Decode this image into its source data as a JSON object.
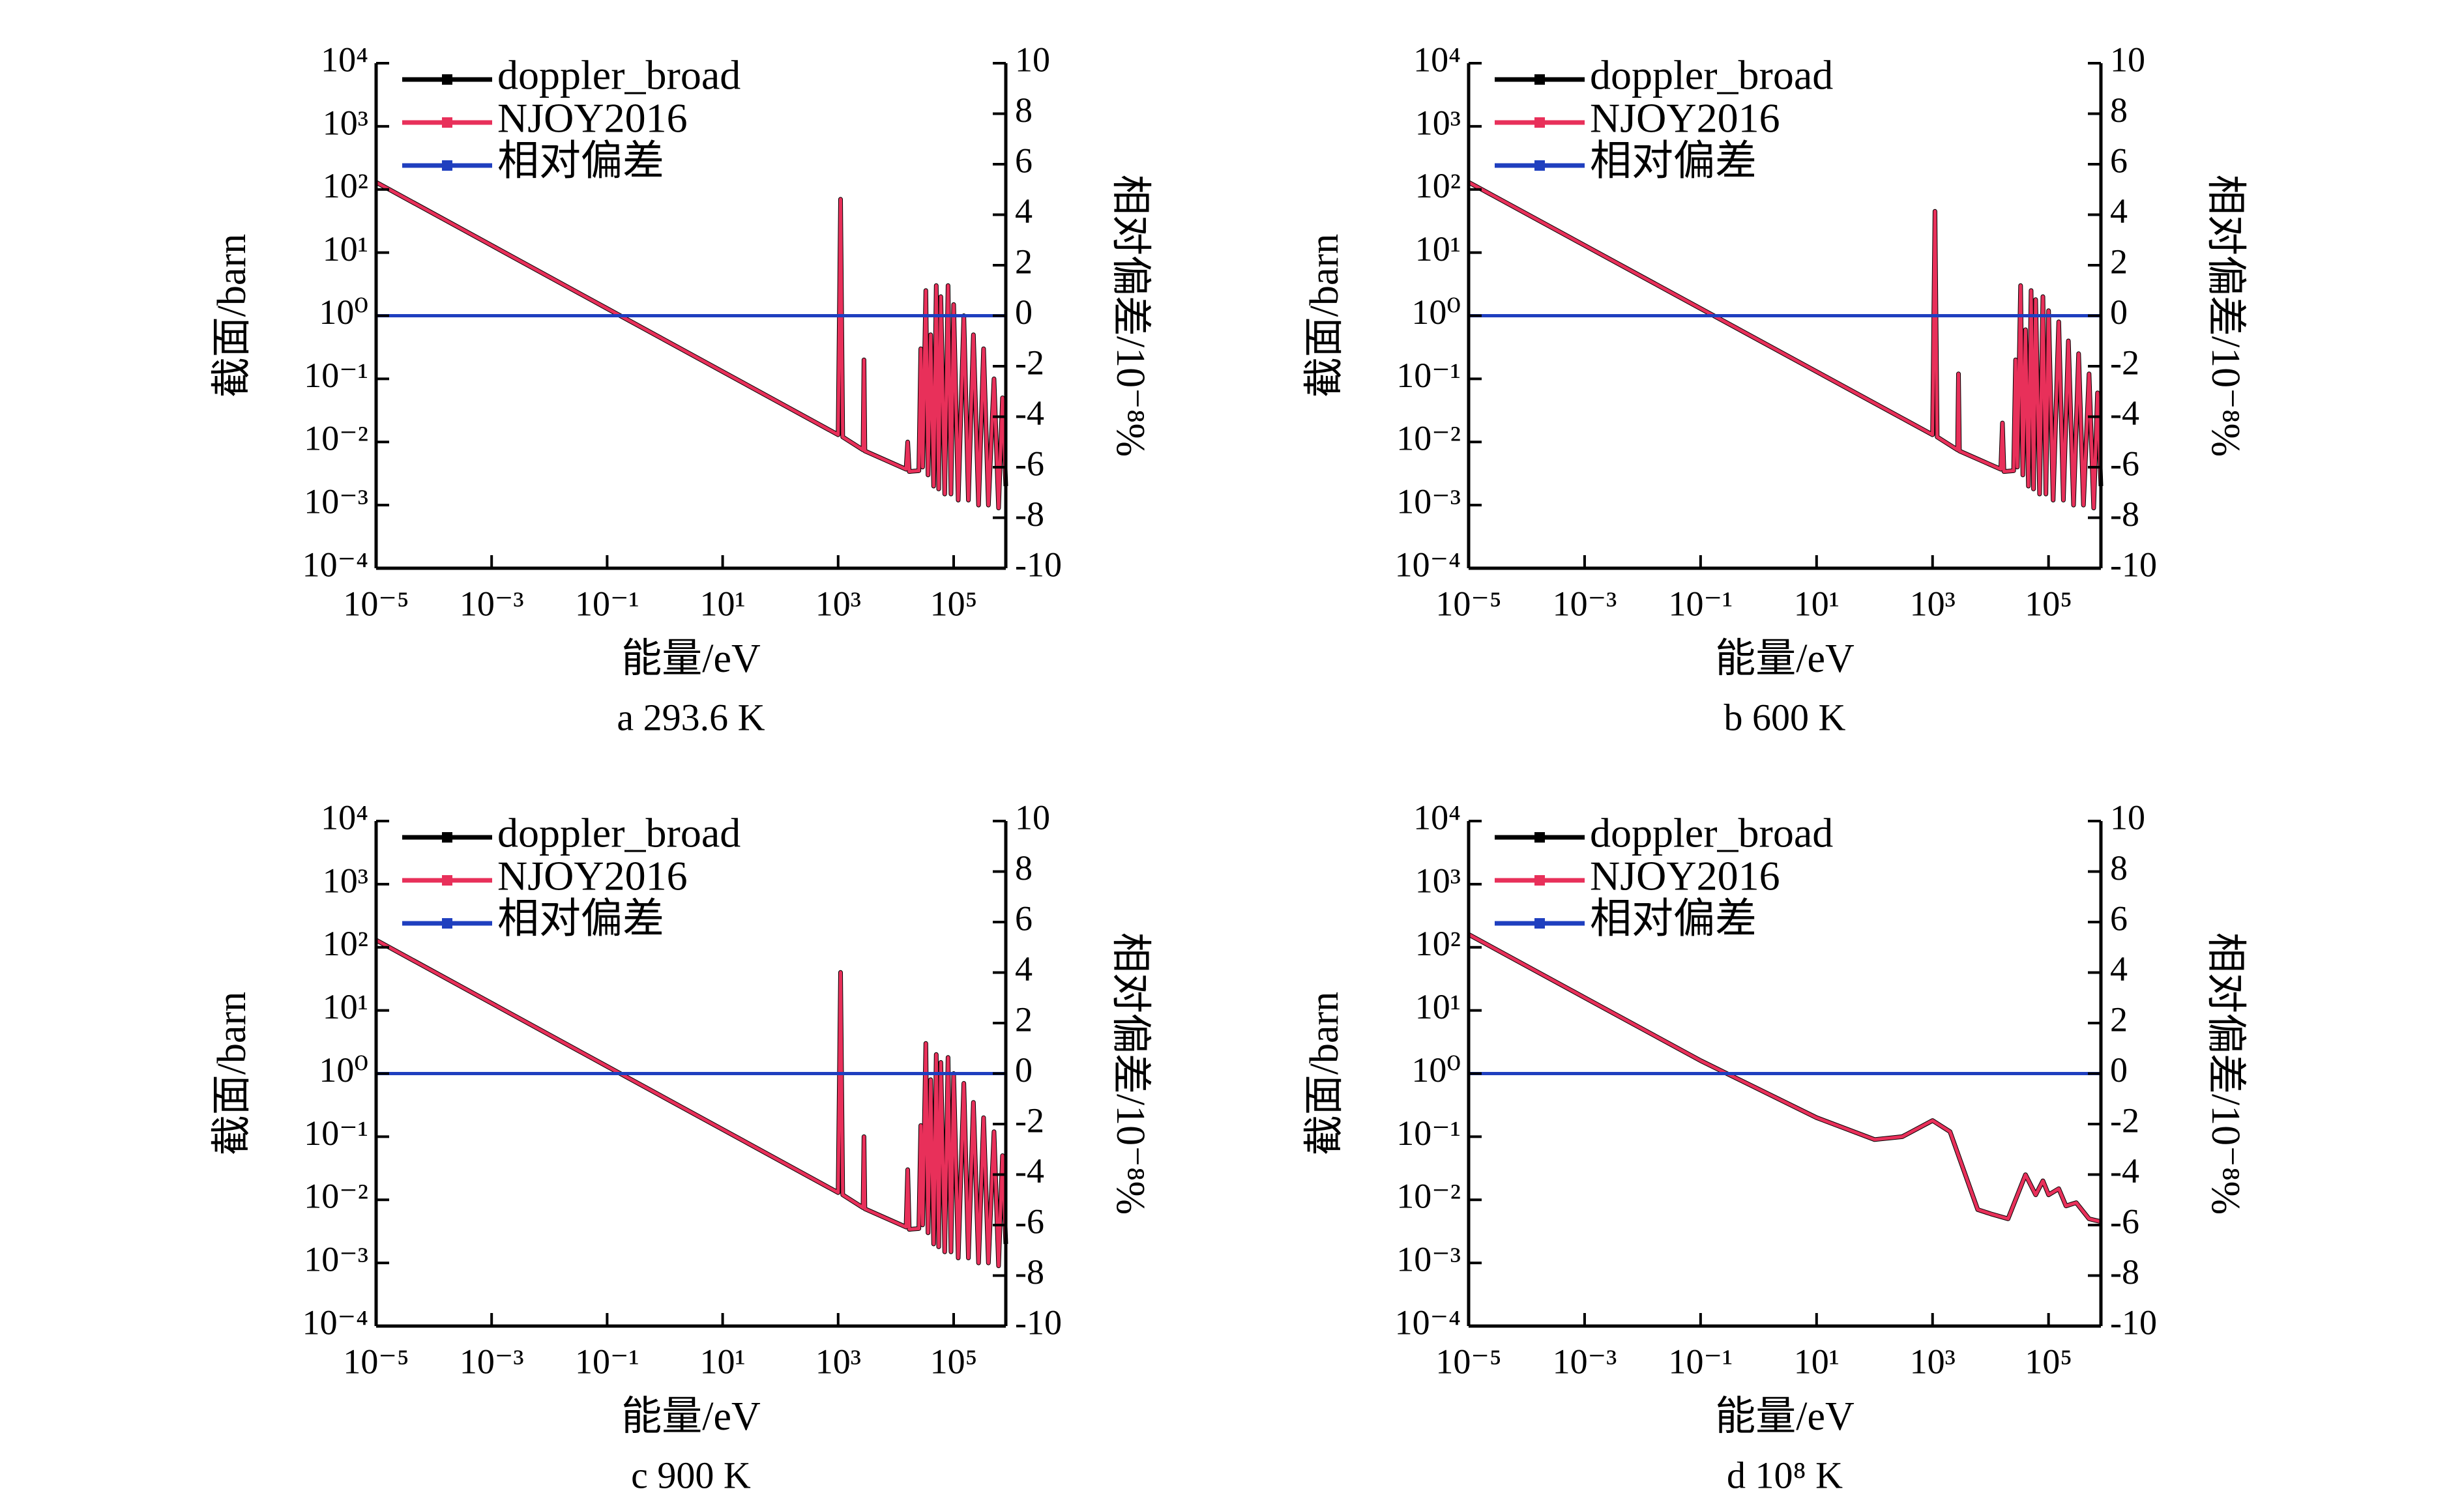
{
  "chart_data": [
    {
      "type": "line",
      "title": "a  293.6 K",
      "x_label": "能量/eV",
      "y_label": "截面/barn",
      "y2_label": "相对偏差/10⁻⁸%",
      "log_x": true,
      "log_y": true,
      "xlim": [
        1e-05,
        800000
      ],
      "xticks": [
        {
          "value": 1e-05,
          "label": "10⁻⁵"
        },
        {
          "value": 0.001,
          "label": "10⁻³"
        },
        {
          "value": 0.1,
          "label": "10⁻¹"
        },
        {
          "value": 10,
          "label": "10¹"
        },
        {
          "value": 1000,
          "label": "10³"
        },
        {
          "value": 100000,
          "label": "10⁵"
        }
      ],
      "ylim": [
        0.0001,
        10000
      ],
      "yticks": [
        {
          "value": 0.0001,
          "label": "10⁻⁴"
        },
        {
          "value": 0.001,
          "label": "10⁻³"
        },
        {
          "value": 0.01,
          "label": "10⁻²"
        },
        {
          "value": 0.1,
          "label": "10⁻¹"
        },
        {
          "value": 1,
          "label": "10⁰"
        },
        {
          "value": 10,
          "label": "10¹"
        },
        {
          "value": 100,
          "label": "10²"
        },
        {
          "value": 1000,
          "label": "10³"
        },
        {
          "value": 10000,
          "label": "10⁴"
        }
      ],
      "y2lim": [
        -10,
        10
      ],
      "y2ticks": [
        -10,
        -8,
        -6,
        -4,
        -2,
        0,
        2,
        4,
        6,
        8,
        10
      ],
      "x": [
        1e-05,
        0.001,
        0.1,
        10,
        1000,
        1100,
        1200,
        2700,
        2800,
        2900,
        15000,
        16000,
        17000,
        25000,
        27000,
        29000,
        33000,
        36000,
        40000,
        45000,
        50000,
        55000,
        60000,
        70000,
        80000,
        90000,
        100000,
        120000,
        150000,
        180000,
        220000,
        270000,
        330000,
        400000,
        500000,
        600000,
        700000,
        800000
      ],
      "series": [
        {
          "name": "doppler_broad",
          "color": "#000000",
          "values": [
            130,
            13,
            1.3,
            0.13,
            0.013,
            70,
            0.012,
            0.0075,
            0.2,
            0.0072,
            0.0037,
            0.01,
            0.0034,
            0.0035,
            0.3,
            0.004,
            2.5,
            0.003,
            0.5,
            0.002,
            3,
            0.0018,
            2,
            0.0015,
            3,
            0.0015,
            1.5,
            0.0012,
            1,
            0.0012,
            0.5,
            0.001,
            0.3,
            0.001,
            0.1,
            0.0009,
            0.05,
            0.002
          ]
        },
        {
          "name": "NJOY2016",
          "color": "#e8305a",
          "values": [
            130,
            13,
            1.3,
            0.13,
            0.013,
            70,
            0.012,
            0.0075,
            0.2,
            0.0072,
            0.0037,
            0.01,
            0.0034,
            0.0035,
            0.3,
            0.004,
            2.5,
            0.003,
            0.5,
            0.002,
            3,
            0.0018,
            2,
            0.0015,
            3,
            0.0015,
            1.5,
            0.0012,
            1,
            0.0012,
            0.5,
            0.001,
            0.3,
            0.001,
            0.1,
            0.0009,
            0.05,
            0.002
          ]
        },
        {
          "name": "相对偏差",
          "color": "#1f3fbf",
          "axis": "y2",
          "values": [
            0,
            0,
            0,
            0,
            0,
            0,
            0,
            0,
            0,
            0,
            0,
            0,
            0,
            0,
            0,
            0,
            0,
            0,
            0,
            0,
            0,
            0,
            0,
            0,
            0,
            0,
            0,
            0,
            0,
            0,
            0,
            0,
            0,
            0,
            0,
            0,
            0,
            0
          ]
        }
      ]
    },
    {
      "type": "line",
      "title": "b  600 K",
      "x_label": "能量/eV",
      "y_label": "截面/barn",
      "y2_label": "相对偏差/10⁻⁸%",
      "log_x": true,
      "log_y": true,
      "xlim": [
        1e-05,
        800000
      ],
      "xticks": [
        {
          "value": 1e-05,
          "label": "10⁻⁵"
        },
        {
          "value": 0.001,
          "label": "10⁻³"
        },
        {
          "value": 0.1,
          "label": "10⁻¹"
        },
        {
          "value": 10,
          "label": "10¹"
        },
        {
          "value": 1000,
          "label": "10³"
        },
        {
          "value": 100000,
          "label": "10⁵"
        }
      ],
      "ylim": [
        0.0001,
        10000
      ],
      "yticks": [
        {
          "value": 0.0001,
          "label": "10⁻⁴"
        },
        {
          "value": 0.001,
          "label": "10⁻³"
        },
        {
          "value": 0.01,
          "label": "10⁻²"
        },
        {
          "value": 0.1,
          "label": "10⁻¹"
        },
        {
          "value": 1,
          "label": "10⁰"
        },
        {
          "value": 10,
          "label": "10¹"
        },
        {
          "value": 100,
          "label": "10²"
        },
        {
          "value": 1000,
          "label": "10³"
        },
        {
          "value": 10000,
          "label": "10⁴"
        }
      ],
      "y2lim": [
        -10,
        10
      ],
      "y2ticks": [
        -10,
        -8,
        -6,
        -4,
        -2,
        0,
        2,
        4,
        6,
        8,
        10
      ],
      "x": [
        1e-05,
        0.001,
        0.1,
        10,
        1000,
        1100,
        1200,
        2700,
        2800,
        2900,
        15000,
        16000,
        17000,
        25000,
        27000,
        29000,
        33000,
        36000,
        40000,
        45000,
        50000,
        55000,
        60000,
        70000,
        80000,
        90000,
        100000,
        120000,
        150000,
        180000,
        220000,
        270000,
        330000,
        400000,
        500000,
        600000,
        700000,
        800000
      ],
      "series": [
        {
          "name": "doppler_broad",
          "color": "#000000",
          "values": [
            130,
            13,
            1.3,
            0.13,
            0.013,
            45,
            0.012,
            0.0075,
            0.12,
            0.0072,
            0.0037,
            0.02,
            0.0034,
            0.0035,
            0.2,
            0.004,
            3,
            0.003,
            0.6,
            0.002,
            2.5,
            0.0018,
            1.8,
            0.0015,
            2,
            0.0015,
            1.2,
            0.0012,
            0.8,
            0.0012,
            0.4,
            0.001,
            0.25,
            0.001,
            0.12,
            0.0009,
            0.06,
            0.002
          ]
        },
        {
          "name": "NJOY2016",
          "color": "#e8305a",
          "values": [
            130,
            13,
            1.3,
            0.13,
            0.013,
            45,
            0.012,
            0.0075,
            0.12,
            0.0072,
            0.0037,
            0.02,
            0.0034,
            0.0035,
            0.2,
            0.004,
            3,
            0.003,
            0.6,
            0.002,
            2.5,
            0.0018,
            1.8,
            0.0015,
            2,
            0.0015,
            1.2,
            0.0012,
            0.8,
            0.0012,
            0.4,
            0.001,
            0.25,
            0.001,
            0.12,
            0.0009,
            0.06,
            0.002
          ]
        },
        {
          "name": "相对偏差",
          "color": "#1f3fbf",
          "axis": "y2",
          "values": [
            0,
            0,
            0,
            0,
            0,
            0,
            0,
            0,
            0,
            0,
            0,
            0,
            0,
            0,
            0,
            0,
            0,
            0,
            0,
            0,
            0,
            0,
            0,
            0,
            0,
            0,
            0,
            0,
            0,
            0,
            0,
            0,
            0,
            0,
            0,
            0,
            0,
            0
          ]
        }
      ]
    },
    {
      "type": "line",
      "title": "c  900 K",
      "x_label": "能量/eV",
      "y_label": "截面/barn",
      "y2_label": "相对偏差/10⁻⁸%",
      "log_x": true,
      "log_y": true,
      "xlim": [
        1e-05,
        800000
      ],
      "xticks": [
        {
          "value": 1e-05,
          "label": "10⁻⁵"
        },
        {
          "value": 0.001,
          "label": "10⁻³"
        },
        {
          "value": 0.1,
          "label": "10⁻¹"
        },
        {
          "value": 10,
          "label": "10¹"
        },
        {
          "value": 1000,
          "label": "10³"
        },
        {
          "value": 100000,
          "label": "10⁵"
        }
      ],
      "ylim": [
        0.0001,
        10000
      ],
      "yticks": [
        {
          "value": 0.0001,
          "label": "10⁻⁴"
        },
        {
          "value": 0.001,
          "label": "10⁻³"
        },
        {
          "value": 0.01,
          "label": "10⁻²"
        },
        {
          "value": 0.1,
          "label": "10⁻¹"
        },
        {
          "value": 1,
          "label": "10⁰"
        },
        {
          "value": 10,
          "label": "10¹"
        },
        {
          "value": 100,
          "label": "10²"
        },
        {
          "value": 1000,
          "label": "10³"
        },
        {
          "value": 10000,
          "label": "10⁴"
        }
      ],
      "y2lim": [
        -10,
        10
      ],
      "y2ticks": [
        -10,
        -8,
        -6,
        -4,
        -2,
        0,
        2,
        4,
        6,
        8,
        10
      ],
      "x": [
        1e-05,
        0.001,
        0.1,
        10,
        1000,
        1100,
        1200,
        2700,
        2800,
        2900,
        15000,
        16000,
        17000,
        25000,
        27000,
        29000,
        33000,
        36000,
        40000,
        45000,
        50000,
        55000,
        60000,
        70000,
        80000,
        90000,
        100000,
        120000,
        150000,
        180000,
        220000,
        270000,
        330000,
        400000,
        500000,
        600000,
        700000,
        800000
      ],
      "series": [
        {
          "name": "doppler_broad",
          "color": "#000000",
          "values": [
            130,
            13,
            1.3,
            0.13,
            0.013,
            40,
            0.012,
            0.0075,
            0.1,
            0.0072,
            0.0037,
            0.03,
            0.0034,
            0.0035,
            0.15,
            0.004,
            3,
            0.003,
            0.8,
            0.002,
            2,
            0.0018,
            1.5,
            0.0015,
            1.8,
            0.0015,
            1,
            0.0012,
            0.7,
            0.0012,
            0.35,
            0.001,
            0.2,
            0.001,
            0.12,
            0.0009,
            0.05,
            0.002
          ]
        },
        {
          "name": "NJOY2016",
          "color": "#e8305a",
          "values": [
            130,
            13,
            1.3,
            0.13,
            0.013,
            40,
            0.012,
            0.0075,
            0.1,
            0.0072,
            0.0037,
            0.03,
            0.0034,
            0.0035,
            0.15,
            0.004,
            3,
            0.003,
            0.8,
            0.002,
            2,
            0.0018,
            1.5,
            0.0015,
            1.8,
            0.0015,
            1,
            0.0012,
            0.7,
            0.0012,
            0.35,
            0.001,
            0.2,
            0.001,
            0.12,
            0.0009,
            0.05,
            0.002
          ]
        },
        {
          "name": "相对偏差",
          "color": "#1f3fbf",
          "axis": "y2",
          "values": [
            0,
            0,
            0,
            0,
            0,
            0,
            0,
            0,
            0,
            0,
            0,
            0,
            0,
            0,
            0,
            0,
            0,
            0,
            0,
            0,
            0,
            0,
            0,
            0,
            0,
            0,
            0,
            0,
            0,
            0,
            0,
            0,
            0,
            0,
            0,
            0,
            0,
            0
          ]
        }
      ]
    },
    {
      "type": "line",
      "title": "d  10⁸ K",
      "x_label": "能量/eV",
      "y_label": "截面/barn",
      "y2_label": "相对偏差/10⁻⁸%",
      "log_x": true,
      "log_y": true,
      "xlim": [
        1e-05,
        800000
      ],
      "xticks": [
        {
          "value": 1e-05,
          "label": "10⁻⁵"
        },
        {
          "value": 0.001,
          "label": "10⁻³"
        },
        {
          "value": 0.1,
          "label": "10⁻¹"
        },
        {
          "value": 10,
          "label": "10¹"
        },
        {
          "value": 1000,
          "label": "10³"
        },
        {
          "value": 100000,
          "label": "10⁵"
        }
      ],
      "ylim": [
        0.0001,
        10000
      ],
      "yticks": [
        {
          "value": 0.0001,
          "label": "10⁻⁴"
        },
        {
          "value": 0.001,
          "label": "10⁻³"
        },
        {
          "value": 0.01,
          "label": "10⁻²"
        },
        {
          "value": 0.1,
          "label": "10⁻¹"
        },
        {
          "value": 1,
          "label": "10⁰"
        },
        {
          "value": 10,
          "label": "10¹"
        },
        {
          "value": 100,
          "label": "10²"
        },
        {
          "value": 1000,
          "label": "10³"
        },
        {
          "value": 10000,
          "label": "10⁴"
        }
      ],
      "y2lim": [
        -10,
        10
      ],
      "y2ticks": [
        -10,
        -8,
        -6,
        -4,
        -2,
        0,
        2,
        4,
        6,
        8,
        10
      ],
      "x": [
        1e-05,
        0.001,
        0.1,
        10,
        100,
        300,
        1000,
        2000,
        4000,
        6000,
        10000,
        20000,
        40000,
        60000,
        80000,
        100000,
        150000,
        200000,
        300000,
        500000,
        800000
      ],
      "series": [
        {
          "name": "doppler_broad",
          "color": "#000000",
          "values": [
            160,
            16,
            1.6,
            0.2,
            0.09,
            0.1,
            0.18,
            0.12,
            0.02,
            0.007,
            0.006,
            0.005,
            0.025,
            0.012,
            0.02,
            0.012,
            0.015,
            0.008,
            0.009,
            0.005,
            0.0045
          ]
        },
        {
          "name": "NJOY2016",
          "color": "#e8305a",
          "values": [
            160,
            16,
            1.6,
            0.2,
            0.09,
            0.1,
            0.18,
            0.12,
            0.02,
            0.007,
            0.006,
            0.005,
            0.025,
            0.012,
            0.02,
            0.012,
            0.015,
            0.008,
            0.009,
            0.005,
            0.0045
          ]
        },
        {
          "name": "相对偏差",
          "color": "#1f3fbf",
          "axis": "y2",
          "values": [
            0,
            0,
            0,
            0,
            0,
            0,
            0,
            0,
            0,
            0,
            0,
            0,
            0,
            0,
            0,
            0,
            0,
            0,
            0,
            0,
            0
          ]
        }
      ]
    }
  ]
}
